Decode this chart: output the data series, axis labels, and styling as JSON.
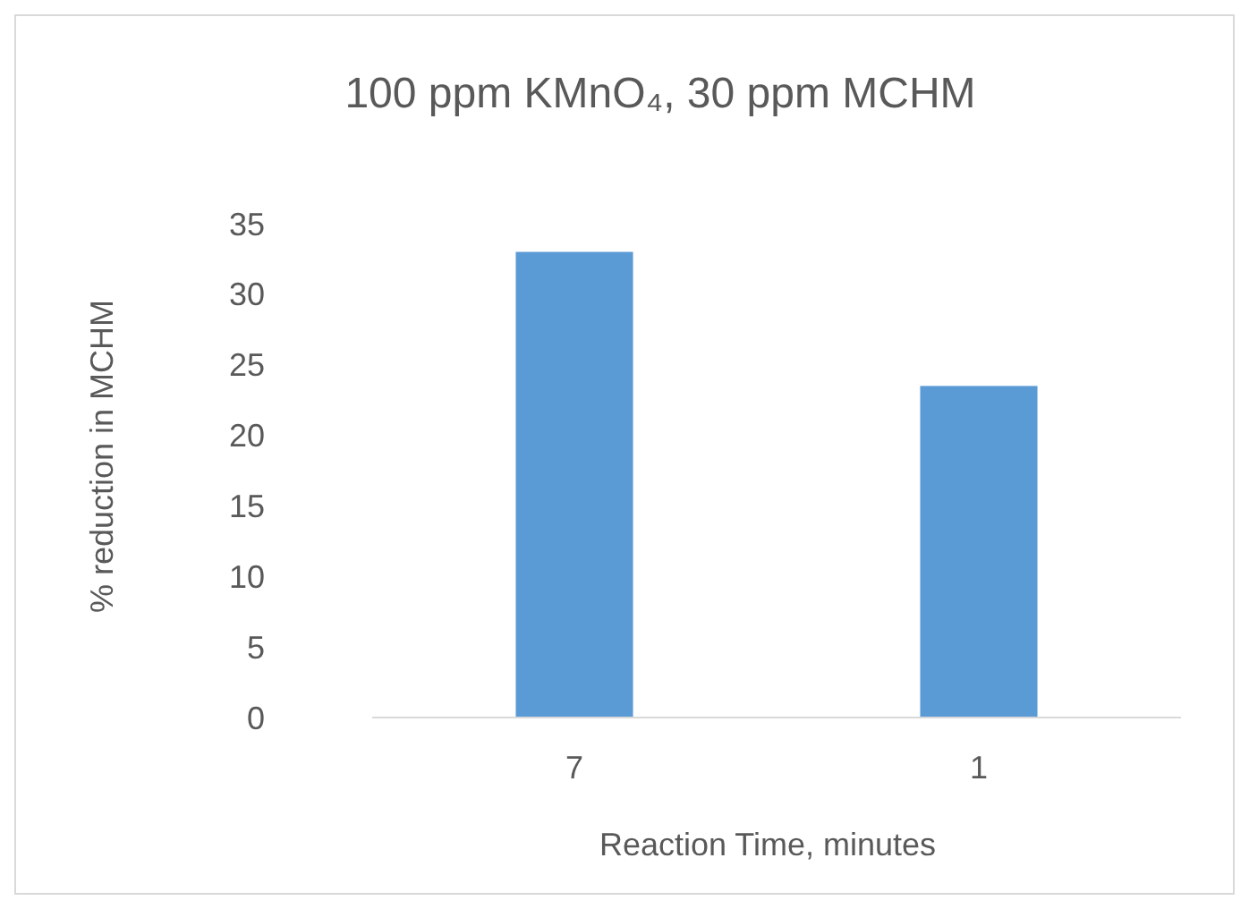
{
  "chart_data": {
    "type": "bar",
    "title": "100 ppm KMnO₄, 30 ppm MCHM",
    "xlabel": "Reaction Time, minutes",
    "ylabel": "% reduction in MCHM",
    "categories": [
      "7",
      "1"
    ],
    "values": [
      33,
      23.5
    ],
    "color": "#5b9bd5",
    "ylim": [
      0,
      35
    ],
    "yticks": [
      0,
      5,
      10,
      15,
      20,
      25,
      30,
      35
    ],
    "grid": false
  }
}
